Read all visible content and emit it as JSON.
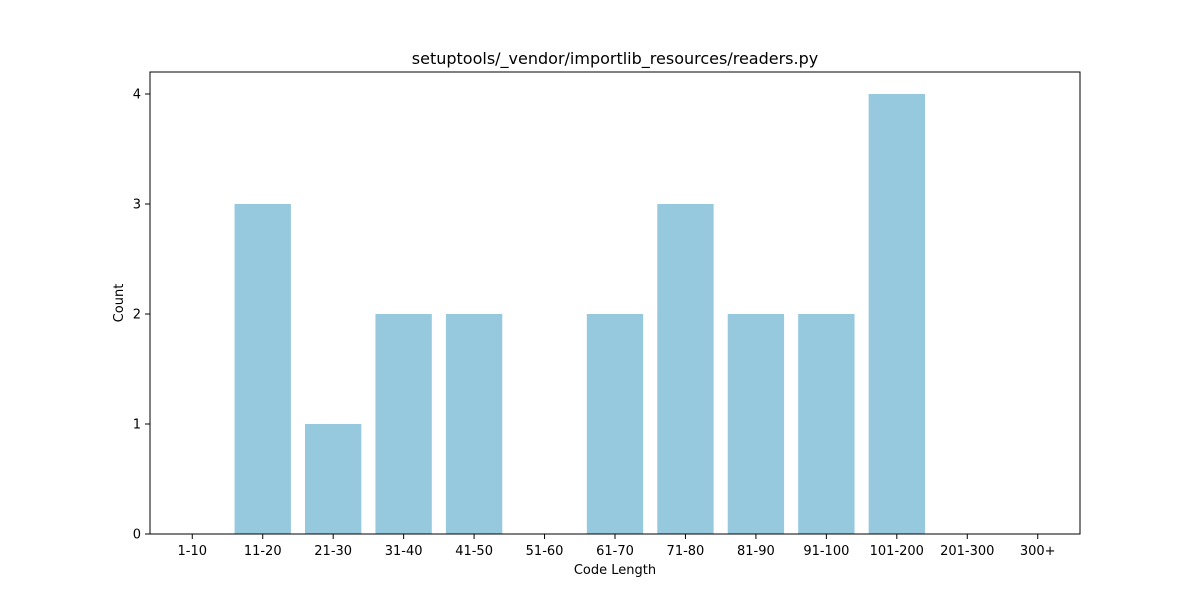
{
  "chart_data": {
    "type": "bar",
    "title": "setuptools/_vendor/importlib_resources/readers.py",
    "xlabel": "Code Length",
    "ylabel": "Count",
    "categories": [
      "1-10",
      "11-20",
      "21-30",
      "31-40",
      "41-50",
      "51-60",
      "61-70",
      "71-80",
      "81-90",
      "91-100",
      "101-200",
      "201-300",
      "300+"
    ],
    "values": [
      0,
      3,
      1,
      2,
      2,
      0,
      2,
      3,
      2,
      2,
      4,
      0,
      0
    ],
    "yticks": [
      "0",
      "1",
      "2",
      "3",
      "4"
    ],
    "ylim": [
      0,
      4.2
    ],
    "bar_color": "#96c9dd",
    "grid": false,
    "legend": "none"
  }
}
